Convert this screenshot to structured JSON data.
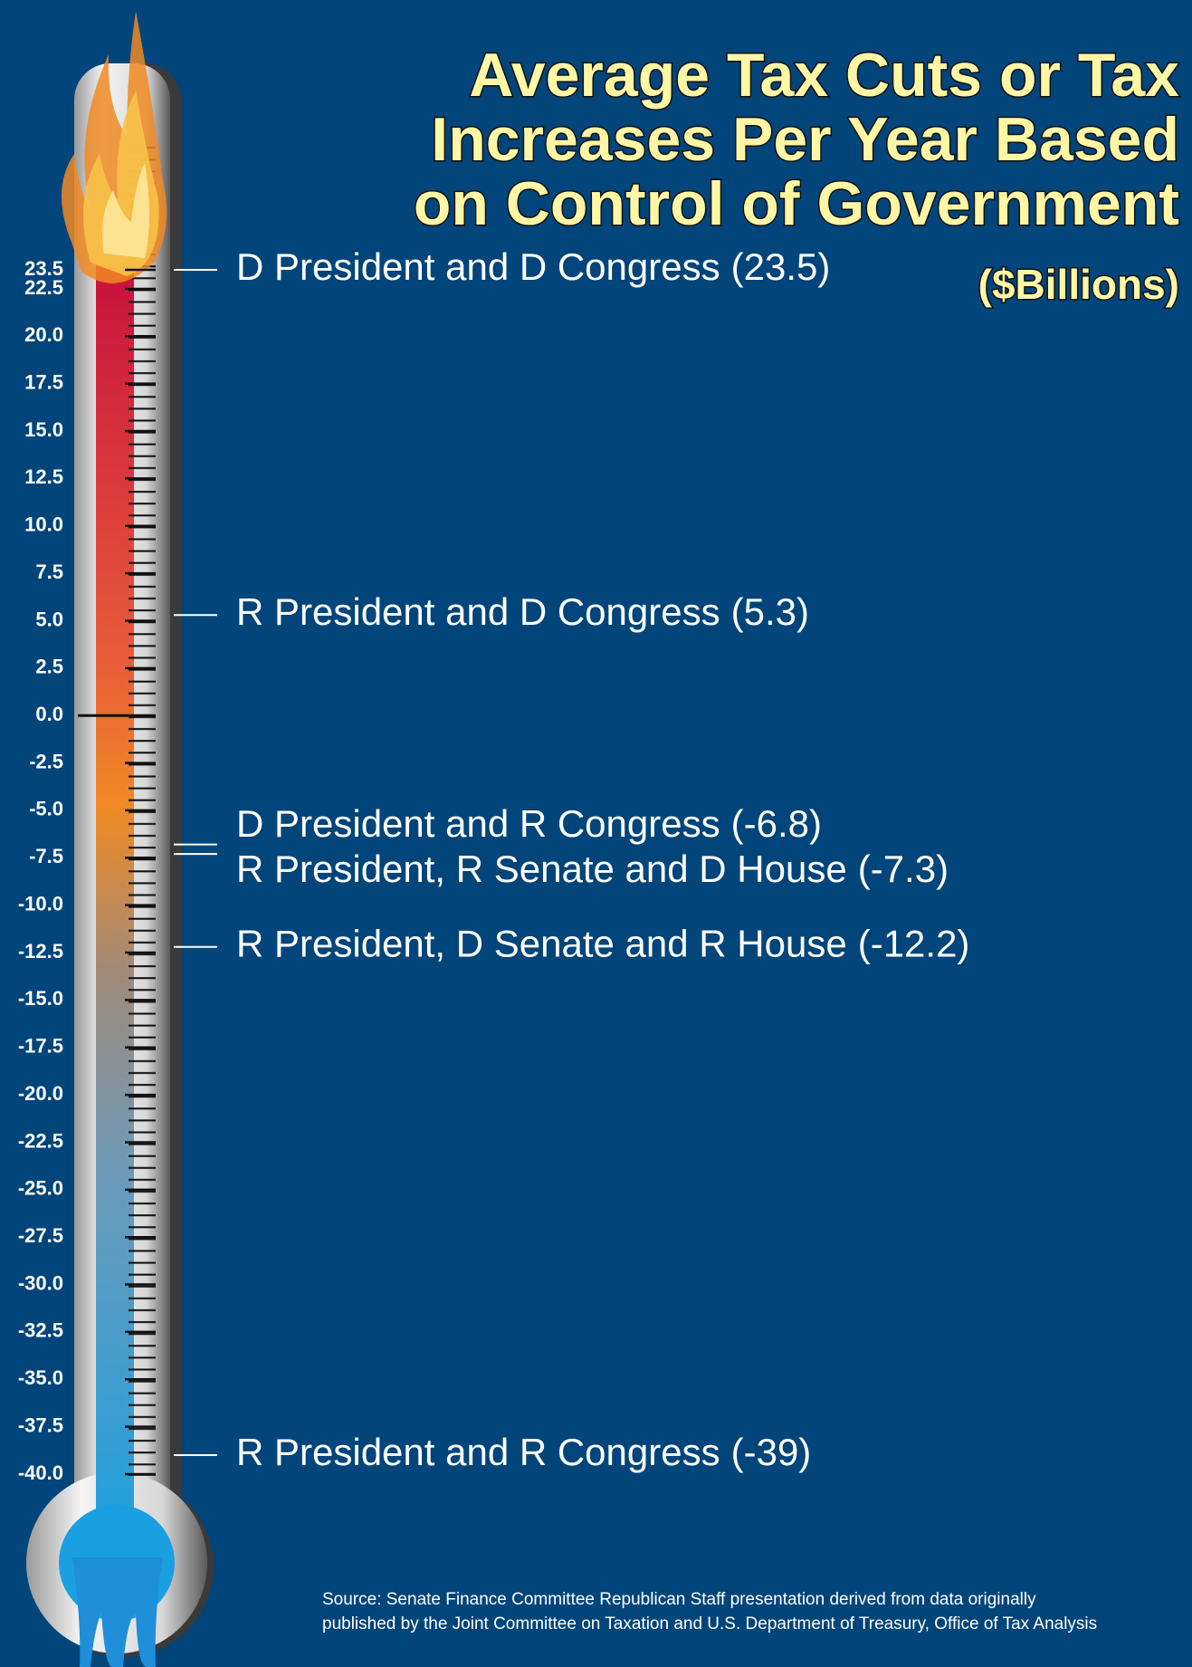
{
  "chart_data": {
    "type": "thermometer",
    "title": [
      "Average Tax Cuts or Tax",
      "Increases Per Year Based",
      "on Control of Government"
    ],
    "subtitle": "($Billions)",
    "categories": [
      "D President and D Congress",
      "R President and D Congress",
      "D President and R Congress",
      "R President, R Senate and D House",
      "R President, D Senate and R House",
      "R President and R Congress"
    ],
    "values": [
      23.5,
      5.3,
      -6.8,
      -7.3,
      -12.2,
      -39
    ],
    "value_labels": [
      "(23.5)",
      "(5.3)",
      "(-6.8)",
      "(-7.3)",
      "(-12.2)",
      "(-39)"
    ],
    "ylim": [
      -40,
      23.5
    ],
    "yticks": [
      23.5,
      22.5,
      {
        "value": 20,
        "label": "20.0"
      },
      17.5,
      {
        "value": 15,
        "label": "15.0"
      },
      12.5,
      {
        "value": 10,
        "label": "10.0"
      },
      7.5,
      {
        "value": 5,
        "label": "5.0"
      },
      2.5,
      {
        "value": 0,
        "label": "0.0"
      },
      -2.5,
      {
        "value": -5,
        "label": "-5.0"
      },
      -7.5,
      {
        "value": -10,
        "label": "-10.0"
      },
      -12.5,
      {
        "value": -15,
        "label": "-15.0"
      },
      -17.5,
      {
        "value": -20,
        "label": "-20.0"
      },
      -22.5,
      {
        "value": -25,
        "label": "-25.0"
      },
      -27.5,
      {
        "value": -30,
        "label": "-30.0"
      },
      -32.5,
      {
        "value": -35,
        "label": "-35.0"
      },
      -37.5,
      {
        "value": -40,
        "label": "-40.0"
      }
    ],
    "source": [
      "Source: Senate Finance Committee Republican Staff presentation derived from data originally",
      "published by the Joint Committee on Taxation and U.S. Department of Treasury, Office of Tax Analysis"
    ]
  }
}
